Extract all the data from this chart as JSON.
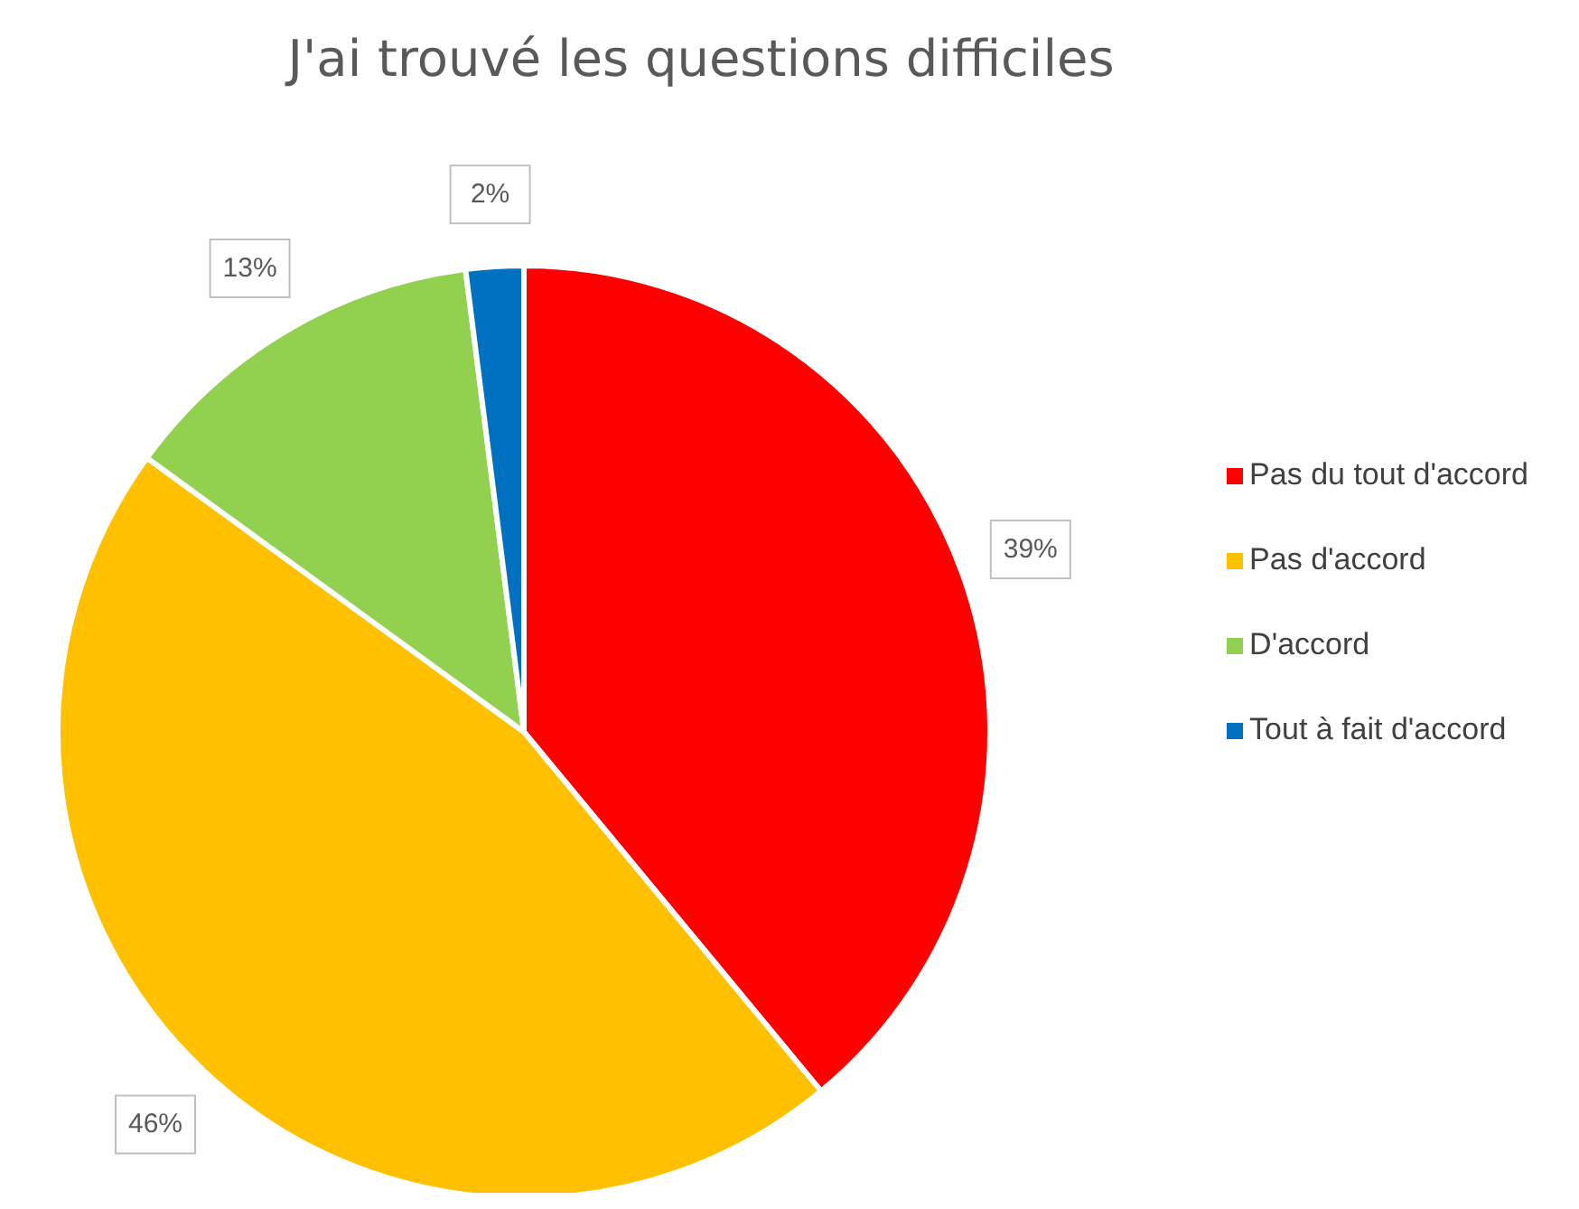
{
  "chart_data": {
    "type": "pie",
    "title": "J'ai trouvé les questions difficiles",
    "categories": [
      "Pas du tout d'accord",
      "Pas d'accord",
      "D'accord",
      "Tout à fait d'accord"
    ],
    "values": [
      39,
      46,
      13,
      2
    ],
    "colors": [
      "#ff0000",
      "#ffc000",
      "#92d050",
      "#0070c0"
    ],
    "value_labels": [
      "39%",
      "46%",
      "13%",
      "2%"
    ],
    "legend": "right"
  }
}
